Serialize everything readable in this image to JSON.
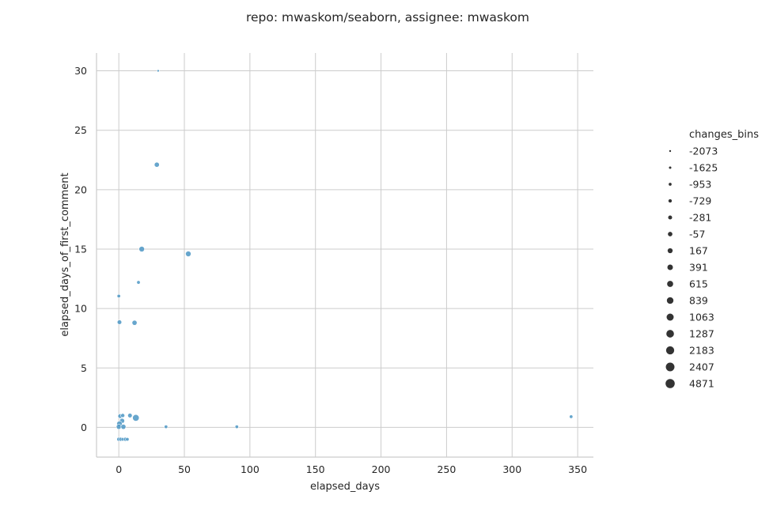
{
  "chart_data": {
    "type": "scatter",
    "title": "repo: mwaskom/seaborn, assignee: mwaskom",
    "xlabel": "elapsed_days",
    "ylabel": "elapsed_days_of_first_comment",
    "xlim": [
      -17,
      362
    ],
    "ylim": [
      -2.5,
      31.5
    ],
    "xticks": [
      0,
      50,
      100,
      150,
      200,
      250,
      300,
      350
    ],
    "yticks": [
      0,
      5,
      10,
      15,
      20,
      25,
      30
    ],
    "grid": true,
    "point_color": "#4c97c4",
    "legend": {
      "title": "changes_bins",
      "placement": "right",
      "entries": [
        "-2073",
        "-1625",
        "-953",
        "-729",
        "-281",
        "-57",
        "167",
        "391",
        "615",
        "839",
        "1063",
        "1287",
        "2183",
        "2407",
        "4871"
      ]
    },
    "points": [
      {
        "x": 30,
        "y": 30,
        "size": "-1625"
      },
      {
        "x": 29,
        "y": 22.1,
        "size": "167"
      },
      {
        "x": 17.5,
        "y": 15,
        "size": "391"
      },
      {
        "x": 53,
        "y": 14.6,
        "size": "391"
      },
      {
        "x": 15,
        "y": 12.2,
        "size": "-729"
      },
      {
        "x": 0,
        "y": 11.05,
        "size": "-729"
      },
      {
        "x": 0.5,
        "y": 8.85,
        "size": "-57"
      },
      {
        "x": 12,
        "y": 8.8,
        "size": "167"
      },
      {
        "x": 1,
        "y": 0.95,
        "size": "-57"
      },
      {
        "x": 3,
        "y": 1.0,
        "size": "-281"
      },
      {
        "x": 8.5,
        "y": 1.0,
        "size": "-57"
      },
      {
        "x": 13,
        "y": 0.8,
        "size": "839"
      },
      {
        "x": 2.5,
        "y": 0.55,
        "size": "167"
      },
      {
        "x": 0.5,
        "y": 0.3,
        "size": "391"
      },
      {
        "x": 0,
        "y": 0.05,
        "size": "167"
      },
      {
        "x": 3.5,
        "y": 0.05,
        "size": "167"
      },
      {
        "x": 36,
        "y": 0.05,
        "size": "-729"
      },
      {
        "x": 90,
        "y": 0.05,
        "size": "-729"
      },
      {
        "x": 345,
        "y": 0.9,
        "size": "-729"
      },
      {
        "x": 0,
        "y": -1.0,
        "size": "-281"
      },
      {
        "x": 1.5,
        "y": -1.0,
        "size": "-281"
      },
      {
        "x": 3,
        "y": -1.0,
        "size": "-729"
      },
      {
        "x": 5,
        "y": -1.0,
        "size": "-281"
      },
      {
        "x": 6.5,
        "y": -1.0,
        "size": "-729"
      }
    ]
  }
}
